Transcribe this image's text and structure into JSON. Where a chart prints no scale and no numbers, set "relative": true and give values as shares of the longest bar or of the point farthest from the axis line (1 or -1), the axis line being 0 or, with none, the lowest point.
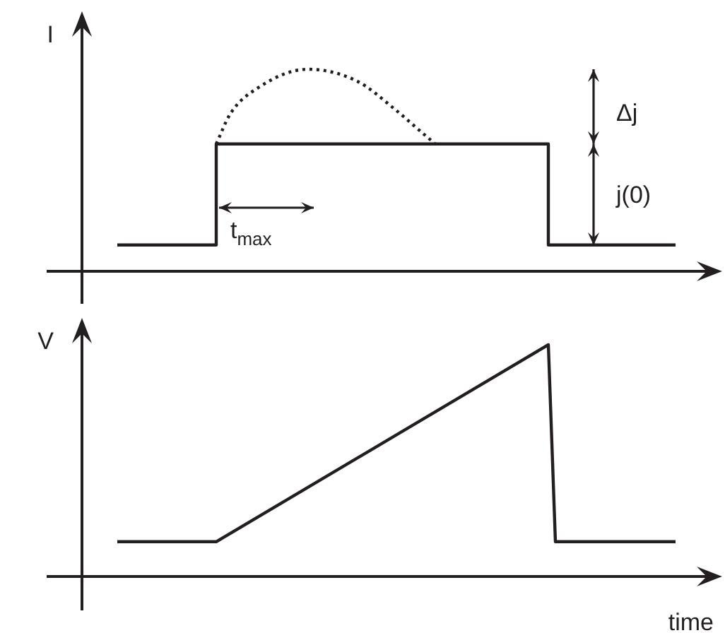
{
  "chart_data": [
    {
      "type": "step",
      "ylabel": "I",
      "relative": true,
      "categories": [
        null,
        null,
        null,
        null,
        null,
        null,
        null,
        null,
        null,
        null,
        null,
        null,
        null,
        null,
        null,
        null,
        null,
        null,
        null,
        null,
        null,
        null,
        null,
        null,
        null,
        null,
        null,
        null,
        null,
        null,
        null,
        null,
        null,
        null,
        null,
        null,
        null,
        null,
        null,
        null,
        null,
        null,
        null,
        null,
        null,
        null,
        null,
        null,
        null,
        null,
        null,
        null,
        null,
        null,
        null,
        null,
        null,
        null,
        null,
        null,
        null,
        null,
        null,
        null,
        null,
        null,
        null,
        null,
        null,
        null,
        null,
        null,
        null,
        null,
        null,
        null,
        null,
        null,
        null,
        null,
        null,
        null,
        null,
        null,
        null,
        null,
        null,
        null,
        null
      ],
      "series": [
        {
          "color": "#231f20",
          "values": [
            null,
            null,
            null,
            null,
            0.13,
            null,
            null,
            null,
            null,
            null,
            null,
            null,
            null,
            null,
            null,
            null,
            null,
            null,
            0.63,
            null,
            null,
            null,
            null,
            null,
            null,
            null,
            null,
            null,
            null,
            null,
            null,
            null,
            null,
            null,
            null,
            null,
            null,
            null,
            null,
            null,
            null,
            null,
            null,
            null,
            null,
            null,
            null,
            null,
            null,
            null,
            null,
            null,
            null,
            null,
            null,
            null,
            null,
            null,
            null,
            null,
            null,
            null,
            null,
            null,
            null,
            0.13,
            null,
            null,
            null,
            null,
            null,
            null,
            null,
            null,
            null,
            null,
            null,
            null,
            null,
            null,
            null,
            null,
            null,
            0.13,
            null,
            null,
            null,
            null,
            null
          ]
        },
        {
          "type": "line",
          "color": "#231f20",
          "line_style": "dotted",
          "values": [
            null,
            null,
            null,
            null,
            null,
            null,
            null,
            null,
            null,
            null,
            null,
            null,
            null,
            null,
            null,
            null,
            null,
            null,
            0.63,
            null,
            0.78,
            null,
            null,
            null,
            0.91,
            null,
            null,
            null,
            null,
            null,
            null,
            1,
            null,
            null,
            null,
            null,
            null,
            null,
            0.94,
            null,
            null,
            null,
            null,
            0.81,
            null,
            null,
            null,
            0.69,
            null,
            0.63,
            null,
            null,
            null,
            null,
            null,
            null,
            null,
            null,
            null,
            null,
            null,
            null,
            null,
            null,
            null,
            null,
            null,
            null,
            null,
            null,
            null,
            null,
            null,
            null,
            null,
            null,
            null,
            null,
            null,
            null,
            null,
            null,
            null,
            null,
            null,
            null,
            null,
            null,
            null
          ]
        }
      ],
      "annotations": [
        "Δj",
        "j(0)",
        "t$_{max}$"
      ]
    },
    {
      "type": "line",
      "ylabel": "V",
      "xlabel": "time",
      "relative": true,
      "categories": [
        null,
        null,
        null,
        null,
        null,
        null,
        null,
        null,
        null,
        null,
        null,
        null,
        null,
        null,
        null,
        null,
        null,
        null,
        null,
        null,
        null,
        null,
        null,
        null,
        null,
        null,
        null,
        null,
        null,
        null,
        null,
        null,
        null,
        null,
        null,
        null,
        null,
        null,
        null,
        null,
        null,
        null,
        null,
        null,
        null,
        null,
        null,
        null,
        null,
        null,
        null,
        null,
        null,
        null,
        null,
        null,
        null,
        null,
        null,
        null,
        null,
        null,
        null,
        null,
        null,
        null,
        null,
        null,
        null,
        null,
        null,
        null,
        null,
        null,
        null,
        null,
        null,
        null,
        null,
        null,
        null,
        null,
        null,
        null,
        null,
        null,
        null,
        null,
        null
      ],
      "series": [
        {
          "color": "#231f20",
          "values": [
            null,
            null,
            null,
            null,
            0.15,
            null,
            null,
            null,
            null,
            null,
            null,
            null,
            null,
            null,
            null,
            null,
            null,
            null,
            0.15,
            null,
            null,
            null,
            null,
            null,
            null,
            null,
            null,
            null,
            null,
            null,
            null,
            null,
            null,
            null,
            null,
            null,
            null,
            null,
            null,
            null,
            null,
            null,
            null,
            null,
            null,
            null,
            null,
            null,
            null,
            null,
            null,
            null,
            null,
            null,
            null,
            null,
            null,
            null,
            null,
            null,
            null,
            null,
            null,
            null,
            null,
            1,
            0.15,
            null,
            null,
            null,
            null,
            null,
            null,
            null,
            null,
            null,
            null,
            null,
            null,
            null,
            null,
            null,
            null,
            0.15,
            null,
            null,
            null,
            null,
            null
          ]
        }
      ]
    }
  ]
}
